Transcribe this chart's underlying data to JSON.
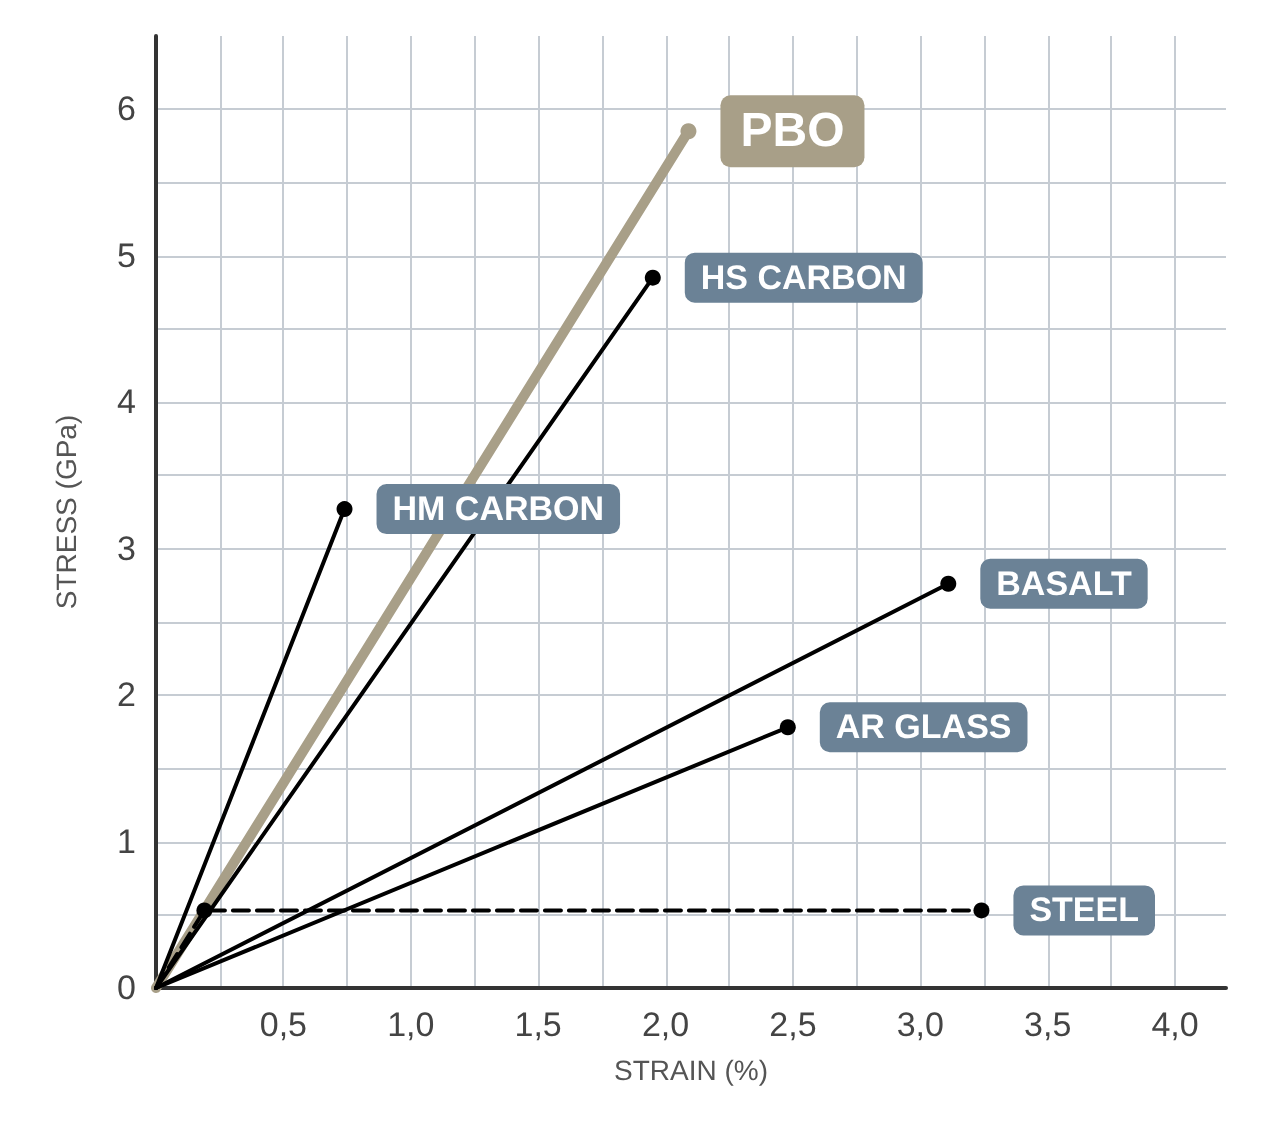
{
  "chart_data": {
    "type": "line",
    "xlabel": "STRAIN (%)",
    "ylabel": "STRESS (GPa)",
    "xlim": [
      0,
      4.2
    ],
    "ylim": [
      0,
      6.5
    ],
    "xticks": [
      {
        "value": 0.25,
        "label": null
      },
      {
        "value": 0.5,
        "label": "0,5"
      },
      {
        "value": 0.75,
        "label": null
      },
      {
        "value": 1,
        "label": "1,0"
      },
      {
        "value": 1.25,
        "label": null
      },
      {
        "value": 1.5,
        "label": "1,5"
      },
      {
        "value": 1.75,
        "label": null
      },
      {
        "value": 2,
        "label": "2,0"
      },
      {
        "value": 2.25,
        "label": null
      },
      {
        "value": 2.5,
        "label": "2,5"
      },
      {
        "value": 2.75,
        "label": null
      },
      {
        "value": 3,
        "label": "3,0"
      },
      {
        "value": 3.25,
        "label": null
      },
      {
        "value": 3.5,
        "label": "3,5"
      },
      {
        "value": 3.75,
        "label": null
      },
      {
        "value": 4,
        "label": "4,0"
      }
    ],
    "yticks": [
      0,
      {
        "value": 0.5,
        "label": null
      },
      1,
      {
        "value": 1.5,
        "label": null
      },
      2,
      {
        "value": 2.5,
        "label": null
      },
      3,
      {
        "value": 3.5,
        "label": null
      },
      4,
      {
        "value": 4.5,
        "label": null
      },
      5,
      {
        "value": 5.5,
        "label": null
      },
      6
    ],
    "grid": true,
    "legend": false,
    "marker": "circle",
    "line_style": "solid",
    "series": [
      {
        "name": "PBO",
        "color": "#a89f88",
        "x": [
          0,
          2.09
        ],
        "values": [
          0,
          5.85
        ]
      },
      {
        "name": "HS CARBON",
        "color": "#000000",
        "x": [
          0,
          1.95
        ],
        "values": [
          0,
          4.85
        ]
      },
      {
        "name": "HM CARBON",
        "color": "#000000",
        "x": [
          0,
          0.74
        ],
        "values": [
          0,
          3.27
        ]
      },
      {
        "name": "BASALT",
        "color": "#000000",
        "x": [
          0,
          3.11
        ],
        "values": [
          0,
          2.76
        ]
      },
      {
        "name": "AR GLASS",
        "color": "#000000",
        "x": [
          0,
          2.48
        ],
        "values": [
          0,
          1.78
        ]
      },
      {
        "name": "STEEL",
        "color": "#000000",
        "x": [
          0,
          0.19,
          3.24
        ],
        "values": [
          0,
          0.53,
          0.53
        ],
        "line_style": "dashed"
      }
    ]
  }
}
